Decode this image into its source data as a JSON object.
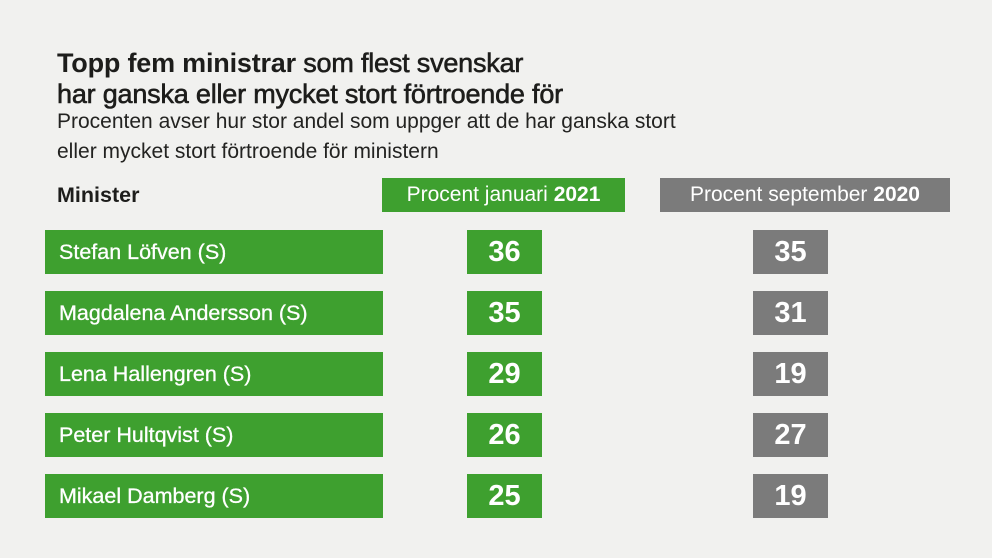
{
  "page": {
    "background_color": "#f1f1ef",
    "accent_green": "#3ea02f",
    "accent_gray": "#7b7b7b"
  },
  "title": {
    "line1_bold": "Topp fem ministrar",
    "line1_rest": " som flest svenskar",
    "line2": "har ganska eller mycket stort förtroende för"
  },
  "subtitle": {
    "line1": "Procenten avser hur stor andel som uppger att de har ganska stort",
    "line2": "eller mycket stort förtroende för ministern"
  },
  "table": {
    "minister_header": "Minister",
    "col_jan": {
      "label": "Procent januari ",
      "year": "2021"
    },
    "col_sep": {
      "label": "Procent september ",
      "year": "2020"
    },
    "rows": [
      {
        "name": "Stefan Löfven (S)",
        "jan2021": "36",
        "sep2020": "35"
      },
      {
        "name": "Magdalena Andersson (S)",
        "jan2021": "35",
        "sep2020": "31"
      },
      {
        "name": "Lena Hallengren (S)",
        "jan2021": "29",
        "sep2020": "19"
      },
      {
        "name": "Peter Hultqvist (S)",
        "jan2021": "26",
        "sep2020": "27"
      },
      {
        "name": "Mikael Damberg (S)",
        "jan2021": "25",
        "sep2020": "19"
      }
    ]
  },
  "chart_data": {
    "type": "table",
    "title": "Topp fem ministrar som flest svenskar har ganska eller mycket stort förtroende för",
    "subtitle": "Procenten avser hur stor andel som uppger att de har ganska stort eller mycket stort förtroende för ministern",
    "columns": [
      "Minister",
      "Procent januari 2021",
      "Procent september 2020"
    ],
    "categories": [
      "Stefan Löfven (S)",
      "Magdalena Andersson (S)",
      "Lena Hallengren (S)",
      "Peter Hultqvist (S)",
      "Mikael Damberg (S)"
    ],
    "series": [
      {
        "name": "Procent januari 2021",
        "values": [
          36,
          35,
          29,
          26,
          25
        ],
        "color": "#3ea02f"
      },
      {
        "name": "Procent september 2020",
        "values": [
          35,
          31,
          19,
          27,
          19
        ],
        "color": "#7b7b7b"
      }
    ],
    "unit": "percent",
    "legend_position": "column-headers",
    "grid": false
  }
}
